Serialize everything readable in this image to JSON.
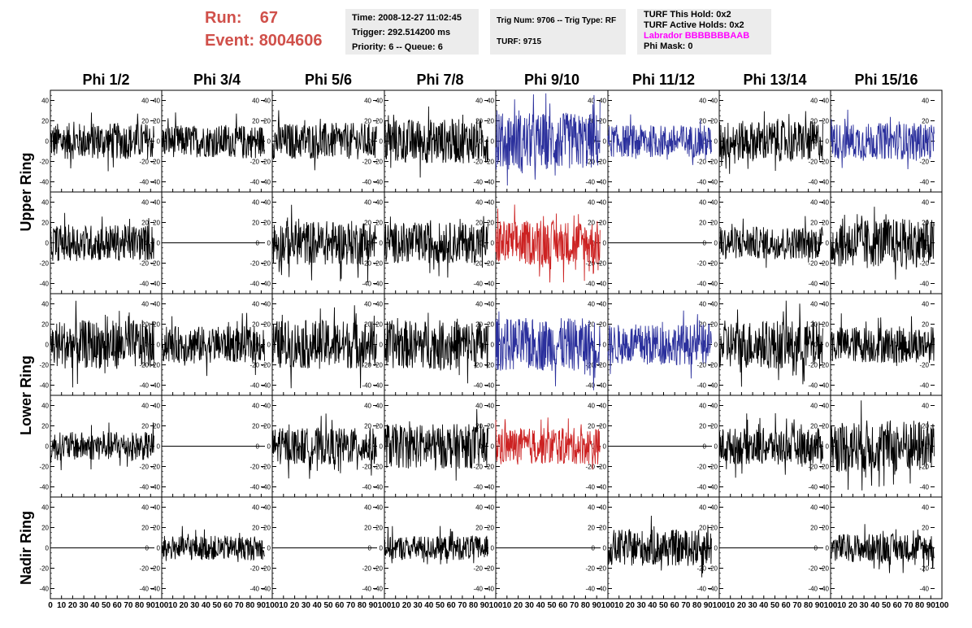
{
  "header": {
    "run_label": "Run:",
    "run_value": "67",
    "event_label": "Event:",
    "event_value": "8004606",
    "time": "Time: 2008-12-27 11:02:45",
    "trigger": "Trigger: 292.514200 ms",
    "priority": "Priority: 6 -- Queue: 6",
    "trig_num": "Trig Num: 9706 -- Trig Type: RF",
    "turf": "TURF: 9715",
    "turf_this_hold": "TURF This Hold: 0x2",
    "turf_active_holds": "TURF Active Holds: 0x2",
    "labrador": "Labrador BBBBBBBAAB",
    "phi_mask": "Phi Mask: 0"
  },
  "colors": {
    "run_text": "#d0504a",
    "labrador": "#ff00ff",
    "trace_default": "#000000",
    "trace_triggered_v": "#2a2f9c",
    "trace_triggered_h": "#cc2222",
    "panel_background": "#ececec"
  },
  "chart_data": {
    "type": "line",
    "columns": [
      "Phi 1/2",
      "Phi 3/4",
      "Phi 5/6",
      "Phi 7/8",
      "Phi 9/10",
      "Phi 11/12",
      "Phi 13/14",
      "Phi 15/16"
    ],
    "ring_labels": [
      {
        "text": "Upper Ring",
        "rows": [
          0,
          1
        ]
      },
      {
        "text": "Lower Ring",
        "rows": [
          2,
          3
        ]
      },
      {
        "text": "Nadir Ring",
        "rows": [
          4,
          4
        ]
      }
    ],
    "xlim": [
      0,
      100
    ],
    "x_ticks": [
      0,
      10,
      20,
      30,
      40,
      50,
      60,
      70,
      80,
      90,
      100
    ],
    "x_tick_labels_even": [
      "0",
      "10",
      "20",
      "30",
      "40",
      "50",
      "60",
      "70",
      "80",
      "90",
      "100"
    ],
    "x_tick_labels_odd": [
      "",
      "10",
      "20",
      "30",
      "40",
      "50",
      "60",
      "70",
      "80",
      "90",
      "100"
    ],
    "ylim": [
      -50,
      50
    ],
    "y_ticks": [
      -40,
      -20,
      0,
      20,
      40
    ],
    "y_tick_labels": [
      "-40",
      "-20",
      "0",
      "20",
      "40"
    ],
    "trace_x_range": [
      0,
      93
    ],
    "panels": [
      [
        {
          "style": "noise",
          "amp": 18,
          "color": "#000000"
        },
        {
          "style": "noise",
          "amp": 16,
          "color": "#000000"
        },
        {
          "style": "noise",
          "amp": 18,
          "color": "#000000"
        },
        {
          "style": "noise",
          "amp": 22,
          "color": "#000000"
        },
        {
          "style": "noise",
          "amp": 28,
          "color": "#2a2f9c"
        },
        {
          "style": "noise",
          "amp": 16,
          "color": "#2a2f9c"
        },
        {
          "style": "noise",
          "amp": 20,
          "color": "#000000"
        },
        {
          "style": "noise",
          "amp": 18,
          "color": "#2a2f9c"
        }
      ],
      [
        {
          "style": "noise",
          "amp": 18,
          "color": "#000000"
        },
        {
          "style": "flat",
          "amp": 0,
          "color": "#000000"
        },
        {
          "style": "noise",
          "amp": 22,
          "color": "#000000"
        },
        {
          "style": "noise",
          "amp": 20,
          "color": "#000000"
        },
        {
          "style": "noise",
          "amp": 22,
          "color": "#cc2222"
        },
        {
          "style": "flat",
          "amp": 0,
          "color": "#000000"
        },
        {
          "style": "noise",
          "amp": 16,
          "color": "#000000"
        },
        {
          "style": "noise",
          "amp": 24,
          "color": "#000000"
        }
      ],
      [
        {
          "style": "noise",
          "amp": 24,
          "color": "#000000"
        },
        {
          "style": "noise",
          "amp": 18,
          "color": "#000000"
        },
        {
          "style": "noise",
          "amp": 24,
          "color": "#000000"
        },
        {
          "style": "noise",
          "amp": 24,
          "color": "#000000"
        },
        {
          "style": "noise",
          "amp": 26,
          "color": "#2a2f9c"
        },
        {
          "style": "noise",
          "amp": 20,
          "color": "#2a2f9c"
        },
        {
          "style": "noise",
          "amp": 24,
          "color": "#000000"
        },
        {
          "style": "noise",
          "amp": 18,
          "color": "#000000"
        }
      ],
      [
        {
          "style": "noise",
          "amp": 14,
          "color": "#000000"
        },
        {
          "style": "flat",
          "amp": 0,
          "color": "#000000"
        },
        {
          "style": "noise",
          "amp": 18,
          "color": "#000000"
        },
        {
          "style": "noise",
          "amp": 22,
          "color": "#000000"
        },
        {
          "style": "noise",
          "amp": 18,
          "color": "#cc2222"
        },
        {
          "style": "flat",
          "amp": 0,
          "color": "#000000"
        },
        {
          "style": "noise",
          "amp": 18,
          "color": "#000000"
        },
        {
          "style": "noise",
          "amp": 26,
          "color": "#000000"
        }
      ],
      [
        {
          "style": "flat",
          "amp": 0,
          "color": "#000000"
        },
        {
          "style": "noise",
          "amp": 12,
          "color": "#000000"
        },
        {
          "style": "flat",
          "amp": 0,
          "color": "#000000"
        },
        {
          "style": "noise",
          "amp": 12,
          "color": "#000000"
        },
        {
          "style": "flat",
          "amp": 0,
          "color": "#000000"
        },
        {
          "style": "noise",
          "amp": 18,
          "color": "#000000"
        },
        {
          "style": "flat",
          "amp": 0,
          "color": "#000000"
        },
        {
          "style": "noise",
          "amp": 14,
          "color": "#000000"
        }
      ]
    ]
  }
}
